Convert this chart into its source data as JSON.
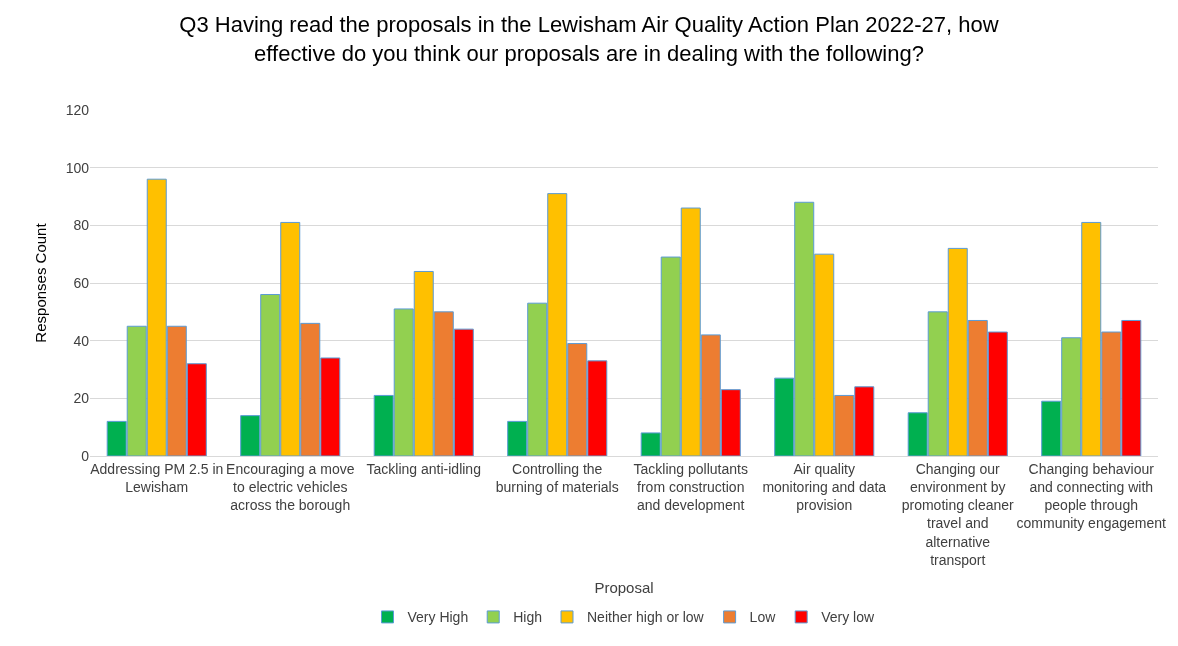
{
  "chart_data": {
    "type": "bar",
    "title": "Q3 Having read the proposals in the Lewisham Air Quality Action Plan 2022-27, how effective do you think our proposals are in dealing with the following?",
    "xlabel": "Proposal",
    "ylabel": "Responses Count",
    "categories": [
      "Addressing PM 2.5 in Lewisham",
      "Encouraging a move to electric vehicles across the borough",
      "Tackling anti-idling",
      "Controlling the burning of materials",
      "Tackling pollutants from construction and development",
      "Air quality monitoring and data provision",
      "Changing our environment by promoting cleaner travel and alternative transport",
      "Changing behaviour and connecting with people through community engagement"
    ],
    "series": [
      {
        "name": "Very High",
        "color": "#00b050",
        "values": [
          12,
          14,
          21,
          12,
          8,
          27,
          15,
          19
        ]
      },
      {
        "name": "High",
        "color": "#92d050",
        "values": [
          45,
          56,
          51,
          53,
          69,
          88,
          50,
          41
        ]
      },
      {
        "name": "Neither high or low",
        "color": "#ffc000",
        "values": [
          96,
          81,
          64,
          91,
          86,
          70,
          72,
          81
        ]
      },
      {
        "name": "Low",
        "color": "#ed7d31",
        "values": [
          45,
          46,
          50,
          39,
          42,
          21,
          47,
          43
        ]
      },
      {
        "name": "Very low",
        "color": "#ff0000",
        "values": [
          32,
          34,
          44,
          33,
          23,
          24,
          43,
          47
        ]
      }
    ],
    "ylim": [
      0,
      120
    ],
    "yticks": [
      0,
      20,
      40,
      60,
      80,
      100,
      120
    ],
    "grid": "y",
    "legend": "bottom"
  }
}
